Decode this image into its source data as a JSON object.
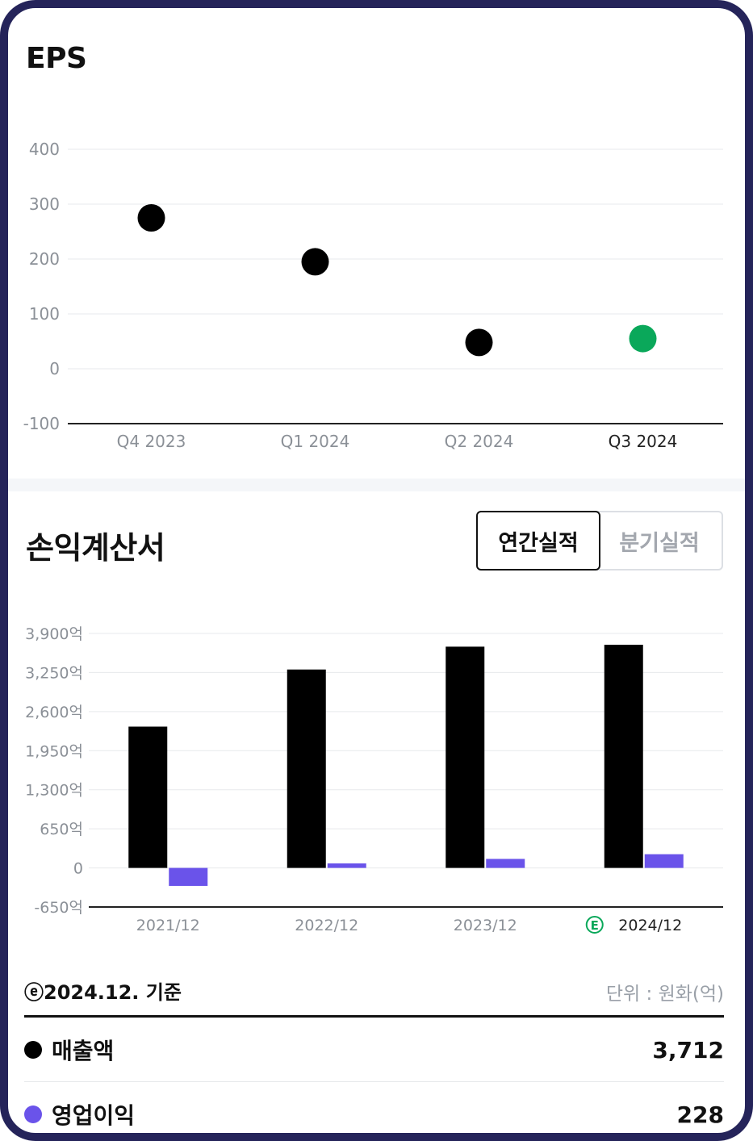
{
  "eps": {
    "title": "EPS",
    "chart_data": {
      "type": "scatter",
      "categories": [
        "Q4 2023",
        "Q1 2024",
        "Q2 2024",
        "Q3 2024"
      ],
      "values": [
        275,
        195,
        48,
        55
      ],
      "estimate_index": 3,
      "yticks": [
        "400",
        "300",
        "200",
        "100",
        "0",
        "-100"
      ],
      "ylim": [
        -100,
        400
      ],
      "grid": true,
      "colors": {
        "actual": "#000000",
        "estimate": "#0aa85a"
      }
    }
  },
  "income": {
    "title": "손익계산서",
    "tabs": [
      {
        "label": "연간실적",
        "active": true
      },
      {
        "label": "분기실적",
        "active": false
      }
    ],
    "chart_data": {
      "type": "bar",
      "categories": [
        "2021/12",
        "2022/12",
        "2023/12",
        "2024/12"
      ],
      "estimate_badge": "E",
      "estimate_index": 3,
      "series": [
        {
          "name": "매출액",
          "color": "#000000",
          "values": [
            2350,
            3300,
            3680,
            3712
          ]
        },
        {
          "name": "영업이익",
          "color": "#6a53ea",
          "values": [
            -300,
            75,
            150,
            228
          ]
        }
      ],
      "yticks": [
        "3,900억",
        "3,250억",
        "2,600억",
        "1,950억",
        "1,300억",
        "650억",
        "0",
        "-650억"
      ],
      "ylim": [
        -650,
        3900
      ],
      "grid": true
    },
    "basis": "ⓔ2024.12. 기준",
    "unit": "단위 : 원화(억)",
    "summary": [
      {
        "label": "매출액",
        "value": "3,712",
        "color": "#000000"
      },
      {
        "label": "영업이익",
        "value": "228",
        "color": "#6a53ea"
      }
    ]
  }
}
